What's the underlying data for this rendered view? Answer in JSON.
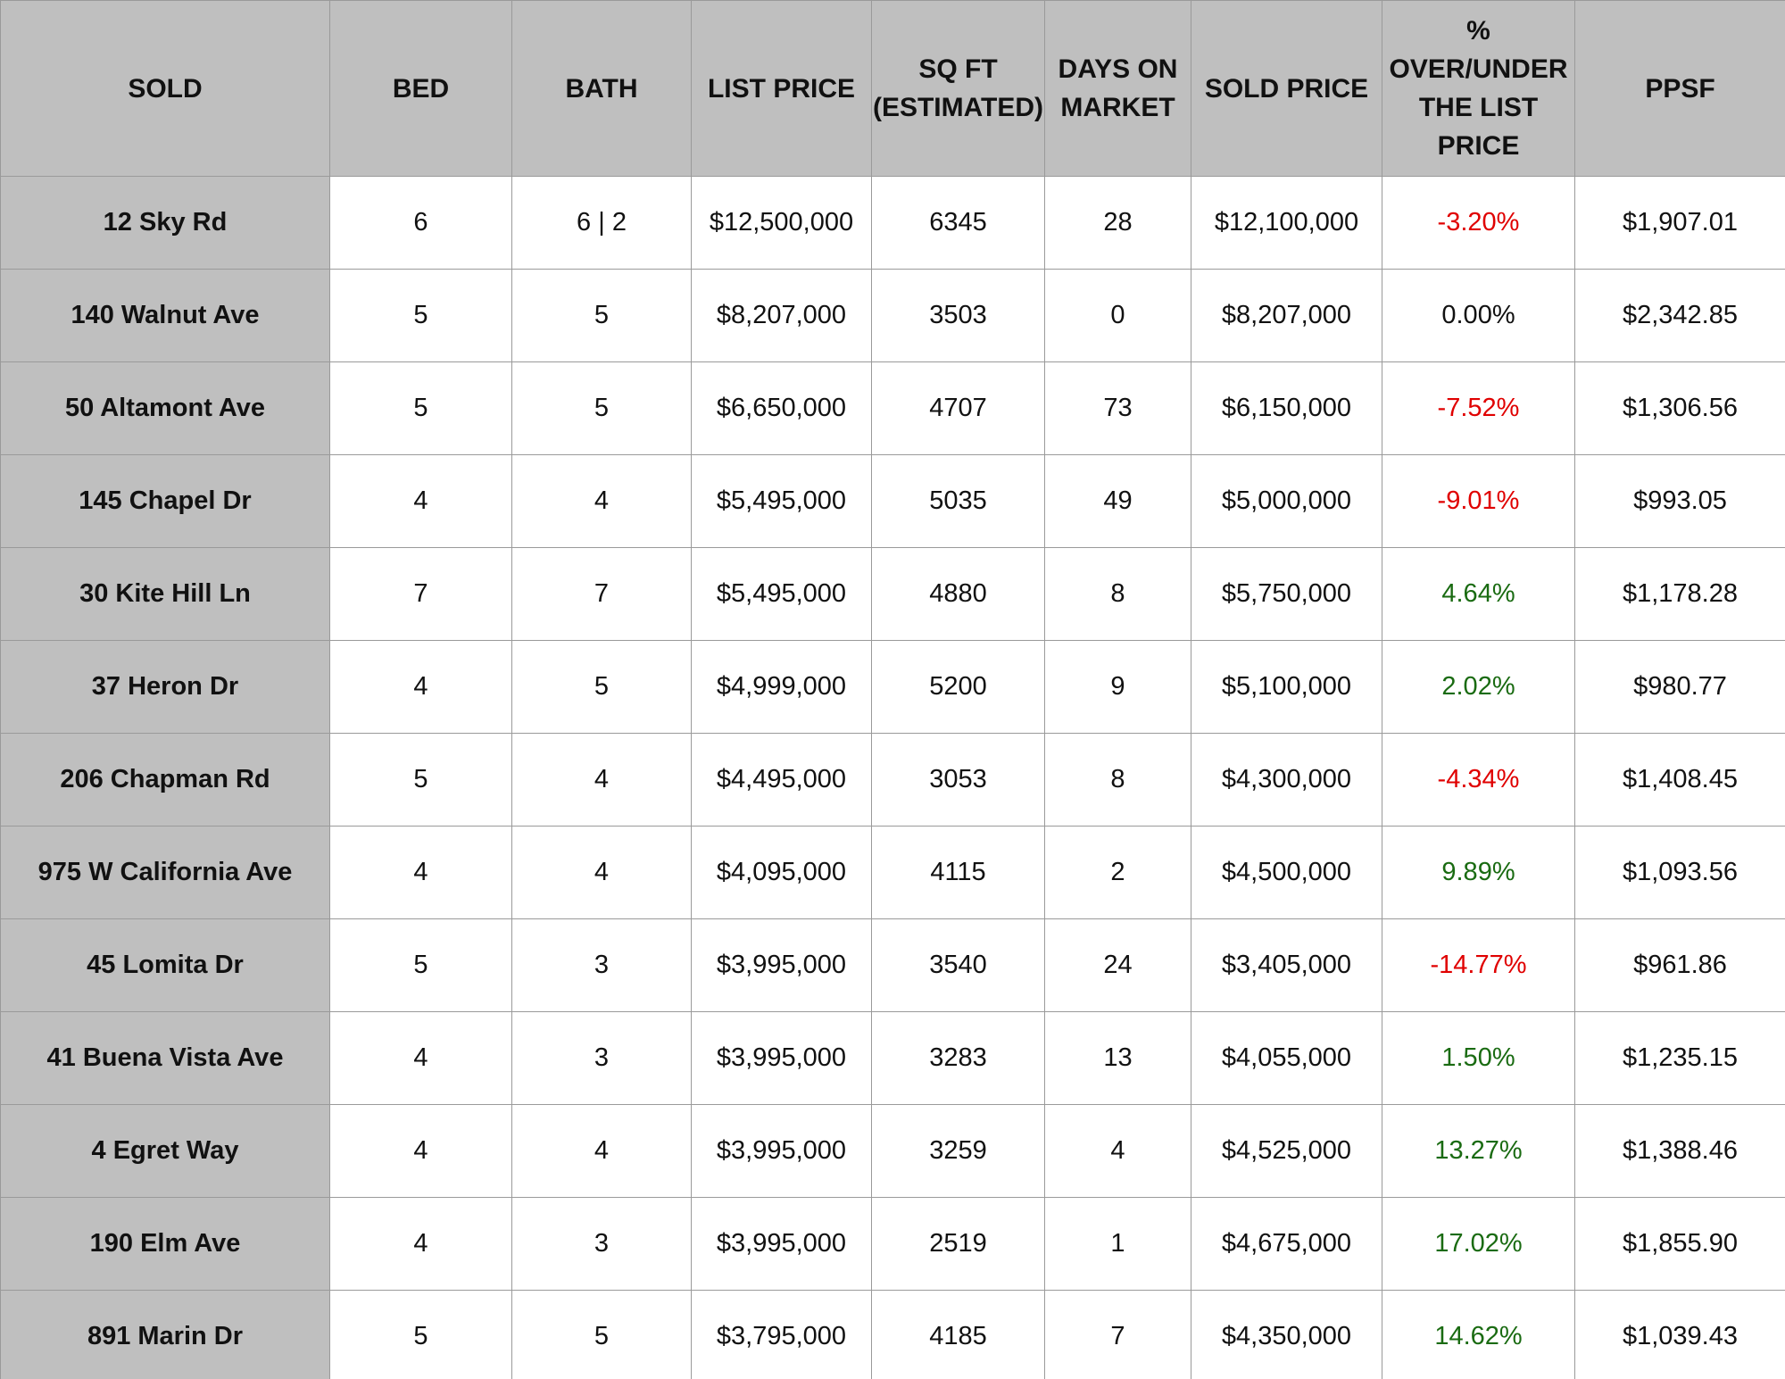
{
  "table": {
    "header": [
      [
        "SOLD"
      ],
      [
        "BED"
      ],
      [
        "BATH"
      ],
      [
        "LIST PRICE"
      ],
      [
        "SQ FT",
        "(ESTIMATED)"
      ],
      [
        "DAYS ON",
        "MARKET"
      ],
      [
        "SOLD PRICE"
      ],
      [
        "%",
        "OVER/UNDER",
        "THE LIST",
        "PRICE"
      ],
      [
        "PPSF"
      ]
    ],
    "rows": [
      [
        "12 Sky Rd",
        "6",
        "6 | 2",
        "$12,500,000",
        "6345",
        "28",
        "$12,100,000",
        "-3.20%",
        "$1,907.01"
      ],
      [
        "140 Walnut Ave",
        "5",
        "5",
        "$8,207,000",
        "3503",
        "0",
        "$8,207,000",
        "0.00%",
        "$2,342.85"
      ],
      [
        "50 Altamont Ave",
        "5",
        "5",
        "$6,650,000",
        "4707",
        "73",
        "$6,150,000",
        "-7.52%",
        "$1,306.56"
      ],
      [
        "145 Chapel Dr",
        "4",
        "4",
        "$5,495,000",
        "5035",
        "49",
        "$5,000,000",
        "-9.01%",
        "$993.05"
      ],
      [
        "30 Kite Hill Ln",
        "7",
        "7",
        "$5,495,000",
        "4880",
        "8",
        "$5,750,000",
        "4.64%",
        "$1,178.28"
      ],
      [
        "37 Heron Dr",
        "4",
        "5",
        "$4,999,000",
        "5200",
        "9",
        "$5,100,000",
        "2.02%",
        "$980.77"
      ],
      [
        "206 Chapman Rd",
        "5",
        "4",
        "$4,495,000",
        "3053",
        "8",
        "$4,300,000",
        "-4.34%",
        "$1,408.45"
      ],
      [
        "975 W California Ave",
        "4",
        "4",
        "$4,095,000",
        "4115",
        "2",
        "$4,500,000",
        "9.89%",
        "$1,093.56"
      ],
      [
        "45 Lomita Dr",
        "5",
        "3",
        "$3,995,000",
        "3540",
        "24",
        "$3,405,000",
        "-14.77%",
        "$961.86"
      ],
      [
        "41 Buena Vista Ave",
        "4",
        "3",
        "$3,995,000",
        "3283",
        "13",
        "$4,055,000",
        "1.50%",
        "$1,235.15"
      ],
      [
        "4 Egret Way",
        "4",
        "4",
        "$3,995,000",
        "3259",
        "4",
        "$4,525,000",
        "13.27%",
        "$1,388.46"
      ],
      [
        "190 Elm Ave",
        "4",
        "3",
        "$3,995,000",
        "2519",
        "1",
        "$4,675,000",
        "17.02%",
        "$1,855.90"
      ],
      [
        "891 Marin Dr",
        "5",
        "5",
        "$3,795,000",
        "4185",
        "7",
        "$4,350,000",
        "14.62%",
        "$1,039.43"
      ]
    ]
  }
}
